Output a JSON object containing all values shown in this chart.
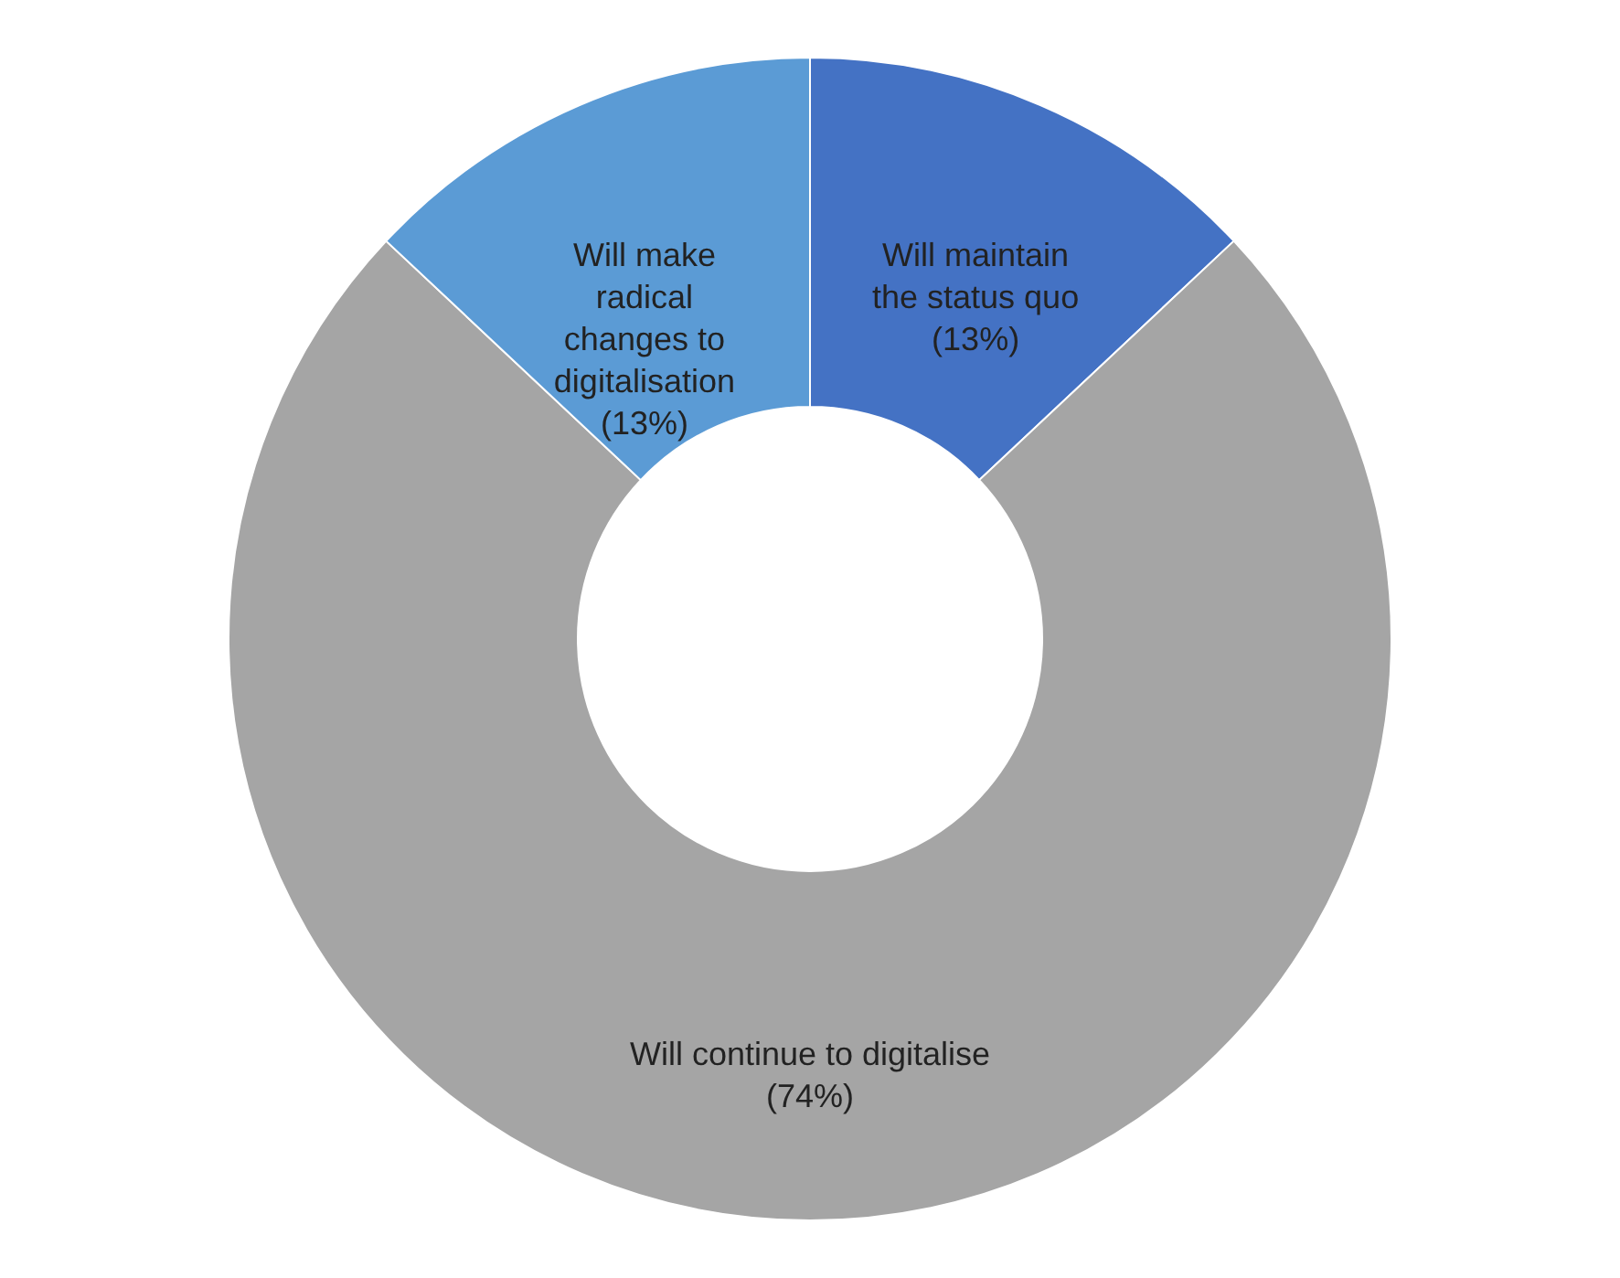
{
  "chart_data": {
    "type": "donut",
    "categories": [
      "Will maintain the status quo",
      "Will continue to digitalise",
      "Will make radical changes to digitalisation"
    ],
    "values": [
      13,
      74,
      13
    ],
    "value_labels": [
      "(13%)",
      "(74%)",
      "(13%)"
    ],
    "colors": [
      "#4472c4",
      "#a5a5a5",
      "#5b9bd5"
    ]
  }
}
